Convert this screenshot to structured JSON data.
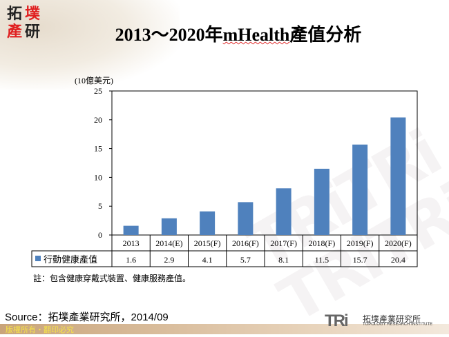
{
  "logo": {
    "chars": [
      "拓",
      "墣",
      "產",
      "研"
    ]
  },
  "title": {
    "prefix": "2013～2020年",
    "underlined": "mHealth",
    "suffix": "產值分析"
  },
  "unit_label": "(10億美元)",
  "note": "註：包含健康穿戴式裝置、健康服務產值。",
  "source": "Source：拓墣產業研究所，2014/09",
  "footer": "版權所有・翻印必究",
  "brand": {
    "mark": "TRi",
    "chinese": "拓墣產業研究所",
    "english": "TOPOLOGY RESEARCH INSTITUTE"
  },
  "colors": {
    "bar": "#4f81bd"
  },
  "chart_data": {
    "type": "bar",
    "title": "2013～2020年mHealth產值分析",
    "ylabel": "(10億美元)",
    "ylim": [
      0,
      25
    ],
    "yticks": [
      0,
      5,
      10,
      15,
      20,
      25
    ],
    "categories": [
      "2013",
      "2014(E)",
      "2015(F)",
      "2016(F)",
      "2017(F)",
      "2018(F)",
      "2019(F)",
      "2020(F)"
    ],
    "series": [
      {
        "name": "行動健康產值",
        "values": [
          1.6,
          2.9,
          4.1,
          5.7,
          8.1,
          11.5,
          15.7,
          20.4
        ]
      }
    ],
    "value_labels": [
      "1.6",
      "2.9",
      "4.1",
      "5.7",
      "8.1",
      "11.5",
      "15.7",
      "20.4"
    ],
    "grid": false,
    "legend": "data-table"
  }
}
